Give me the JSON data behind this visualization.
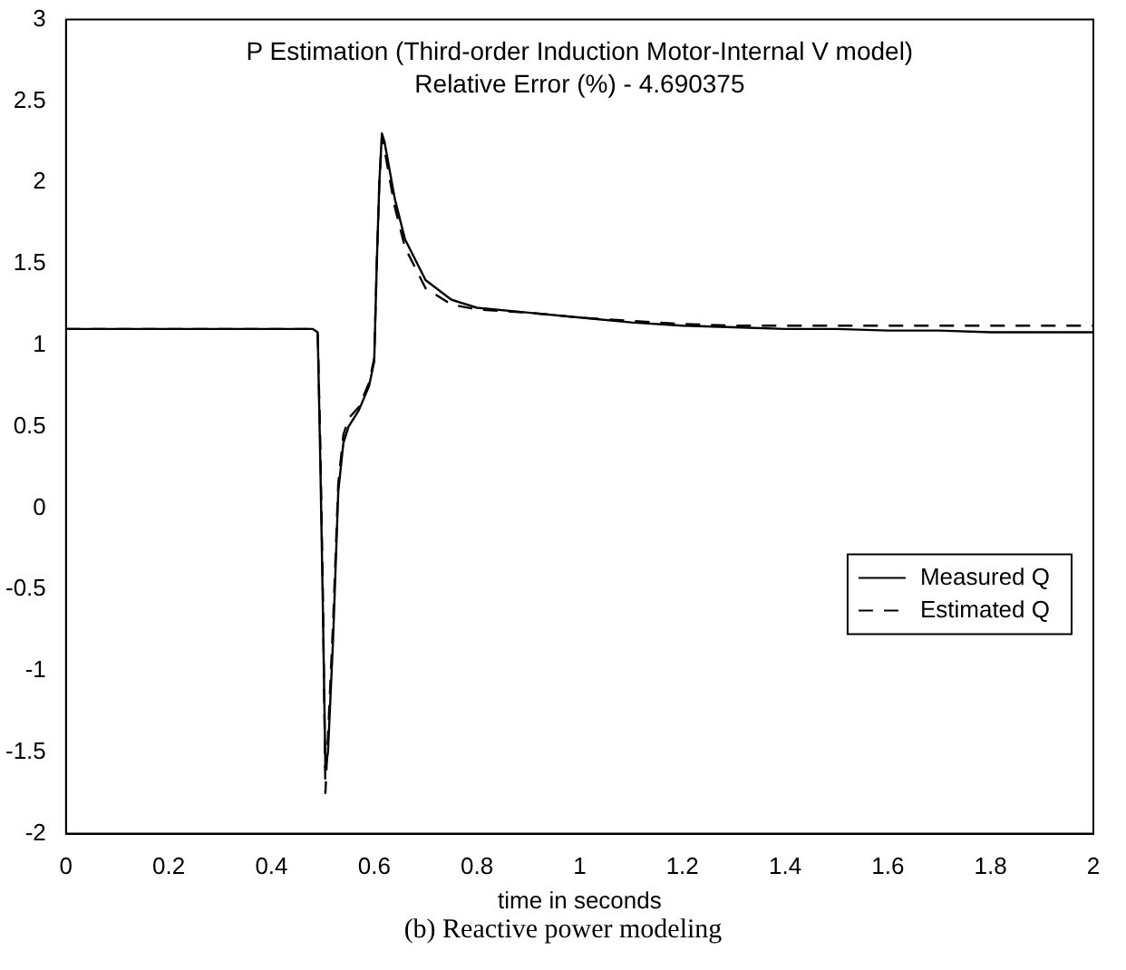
{
  "chart_data": {
    "type": "line",
    "title": [
      "P Estimation (Third-order Induction Motor-Internal V model)",
      "Relative Error (%) - 4.690375"
    ],
    "xlabel": "time in seconds",
    "annotations": [
      "(b) Reactive power modeling"
    ],
    "xlim": [
      0,
      2
    ],
    "xticks": [
      0,
      0.2,
      0.4,
      0.6,
      0.8,
      1,
      1.2,
      1.4,
      1.6,
      1.8,
      2
    ],
    "ylim": [
      -2,
      3
    ],
    "yticks": [
      -2,
      -1.5,
      -1,
      -0.5,
      0,
      0.5,
      1,
      1.5,
      2,
      2.5,
      3
    ],
    "grid": false,
    "legend": "bottom right",
    "marker": "none",
    "series": [
      {
        "name": "Measured Q",
        "color": "#000000",
        "line_style": "solid",
        "x": [
          0,
          0.1,
          0.2,
          0.3,
          0.4,
          0.48,
          0.49,
          0.495,
          0.5,
          0.505,
          0.51,
          0.52,
          0.53,
          0.54,
          0.55,
          0.57,
          0.59,
          0.6,
          0.605,
          0.61,
          0.615,
          0.62,
          0.64,
          0.66,
          0.7,
          0.75,
          0.8,
          0.9,
          1,
          1.1,
          1.2,
          1.3,
          1.4,
          1.5,
          1.6,
          1.7,
          1.8,
          1.9,
          2
        ],
        "values": [
          1.1,
          1.1,
          1.1,
          1.1,
          1.1,
          1.1,
          1.08,
          0.3,
          -0.6,
          -1.6,
          -1.5,
          -0.8,
          0.1,
          0.4,
          0.5,
          0.6,
          0.75,
          0.9,
          1.5,
          2.0,
          2.3,
          2.25,
          1.9,
          1.65,
          1.4,
          1.28,
          1.23,
          1.2,
          1.17,
          1.14,
          1.12,
          1.11,
          1.1,
          1.1,
          1.09,
          1.09,
          1.08,
          1.08,
          1.08
        ]
      },
      {
        "name": "Estimated Q",
        "color": "#000000",
        "line_style": "dashed",
        "x": [
          0,
          0.1,
          0.2,
          0.3,
          0.4,
          0.48,
          0.49,
          0.495,
          0.5,
          0.505,
          0.51,
          0.52,
          0.53,
          0.54,
          0.55,
          0.57,
          0.59,
          0.6,
          0.605,
          0.61,
          0.615,
          0.62,
          0.64,
          0.66,
          0.7,
          0.75,
          0.8,
          0.9,
          1,
          1.1,
          1.2,
          1.3,
          1.4,
          1.5,
          1.6,
          1.7,
          1.8,
          1.9,
          2
        ],
        "values": [
          1.1,
          1.1,
          1.1,
          1.1,
          1.1,
          1.1,
          1.08,
          0.4,
          -0.5,
          -1.75,
          -1.4,
          -0.7,
          0.15,
          0.45,
          0.55,
          0.62,
          0.77,
          0.92,
          1.5,
          2.0,
          2.28,
          2.2,
          1.85,
          1.6,
          1.35,
          1.25,
          1.22,
          1.2,
          1.17,
          1.15,
          1.13,
          1.12,
          1.12,
          1.12,
          1.12,
          1.12,
          1.12,
          1.12,
          1.12
        ]
      }
    ]
  }
}
